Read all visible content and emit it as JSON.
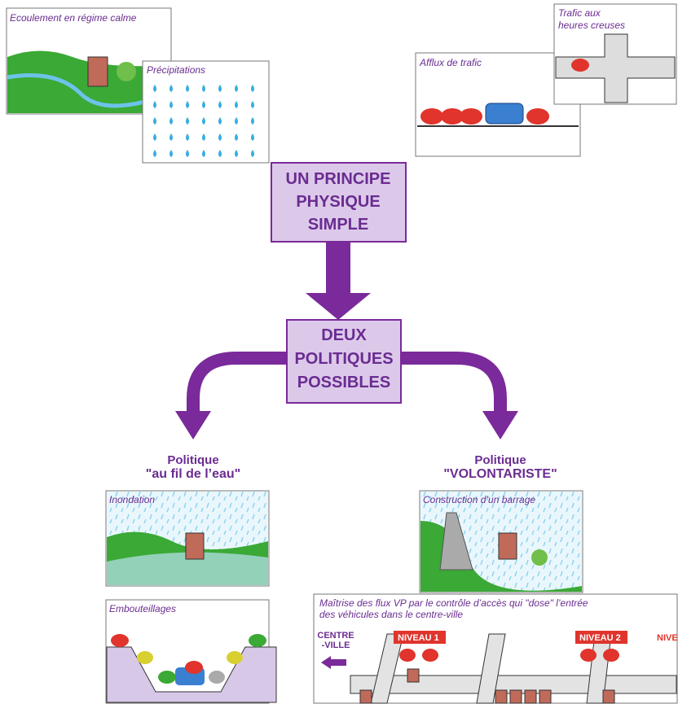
{
  "panels": {
    "ecoulement": {
      "title": "Ecoulement en régime calme"
    },
    "precipitations": {
      "title": "Précipitations"
    },
    "trafic_creuses": {
      "title_lines": [
        "Trafic aux",
        "heures creuses"
      ]
    },
    "afflux": {
      "title": "Afflux de trafic"
    },
    "inondation": {
      "title": "Inondation"
    },
    "barrage": {
      "title": "Construction d’un barrage"
    },
    "embouteillages": {
      "title": "Embouteillages"
    },
    "maitrise": {
      "title_lines": [
        "Maîtrise des flux VP par le contrôle d’accès qui \"dose\" l’entrée",
        "des véhicules dans le centre-ville"
      ],
      "centre_lines": [
        "CENTRE",
        "-VILLE"
      ],
      "levels": [
        "NIVEAU 1",
        "NIVEAU 2",
        "NIVE"
      ]
    }
  },
  "principe": {
    "lines": [
      "UN PRINCIPE",
      "PHYSIQUE",
      "SIMPLE"
    ]
  },
  "politiques": {
    "lines": [
      "DEUX",
      "POLITIQUES",
      "POSSIBLES"
    ]
  },
  "politique_gauche": {
    "label": "Politique",
    "name": "\"au fil de l’eau\""
  },
  "politique_droite": {
    "label": "Politique",
    "name": "\"VOLONTARISTE\""
  }
}
